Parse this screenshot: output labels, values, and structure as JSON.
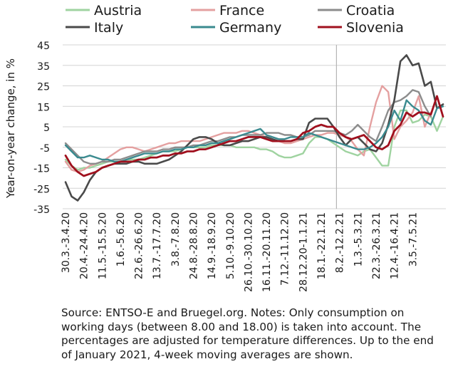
{
  "chart_data": {
    "type": "line",
    "ylabel": "Year-on-year change, in %",
    "ylim": [
      -35,
      45
    ],
    "yticks": [
      -35,
      -25,
      -15,
      -5,
      5,
      15,
      25,
      35,
      45
    ],
    "grid": "horizontal",
    "legend_position": "top",
    "xticks": [
      "30.3.-3.4.20",
      "20.4.-24.4.20",
      "11.5.-15.5.20",
      "1.6.-5.6.20",
      "22.6.-26.6.20",
      "13.7.-17.7.20",
      "3.8.-7.8.20",
      "24.8.-28.8.20",
      "14.9.-18.9.20",
      "5.10.-9.10.20",
      "26.10.-30.10.20",
      "16.11.-20.11.20",
      "7.12.-11.12.20",
      "28.12.20-1.1.21",
      "18.1.-22.1.21",
      "8.2.-12.2.21",
      "1.3.-5.3.21",
      "22.3.-26.3.21",
      "12.4.-16.4.21",
      "3.5.-7.5.21"
    ],
    "annotation": "vertical separator between 1.2.-5.2.21 and 8.2.-12.2.21 (end of 4-week moving averages)",
    "series": [
      {
        "name": "Austria",
        "color": "#9fd3a0",
        "width": 2.4,
        "values": [
          -11,
          -14,
          -16,
          -15,
          -15,
          -14,
          -13,
          -12,
          -12,
          -12,
          -11,
          -11,
          -11,
          -10,
          -9,
          -8,
          -7,
          -7,
          -7,
          -6,
          -5,
          -5,
          -5,
          -5,
          -4,
          -4,
          -4,
          -4,
          -5,
          -5,
          -5,
          -5,
          -6,
          -6,
          -7,
          -9,
          -10,
          -10,
          -9,
          -8,
          -3,
          0,
          0,
          -1,
          -3,
          -5,
          -7,
          -8,
          -9,
          -7,
          -6,
          -10,
          -14,
          -14,
          5,
          13,
          13,
          7,
          8,
          11,
          10,
          3,
          10
        ]
      },
      {
        "name": "France",
        "color": "#e4a0a0",
        "width": 2.4,
        "values": [
          -12,
          -16,
          -17,
          -16,
          -14,
          -13,
          -12,
          -10,
          -8,
          -6,
          -5,
          -5,
          -6,
          -7,
          -6,
          -5,
          -4,
          -3,
          -3,
          -2,
          -2,
          -2,
          -2,
          -1,
          0,
          1,
          2,
          2,
          2,
          3,
          3,
          2,
          1,
          0,
          -1,
          -2,
          -3,
          -3,
          -2,
          -1,
          0,
          1,
          1,
          2,
          2,
          1,
          0,
          -2,
          -6,
          -9,
          5,
          17,
          25,
          22,
          -1,
          5,
          8,
          12,
          20,
          5,
          12
        ]
      },
      {
        "name": "Croatia",
        "color": "#8c8c8c",
        "width": 2.4,
        "values": [
          -3,
          -6,
          -9,
          -12,
          -13,
          -13,
          -12,
          -12,
          -11,
          -11,
          -10,
          -9,
          -8,
          -7,
          -7,
          -7,
          -6,
          -6,
          -5,
          -5,
          -5,
          -4,
          -4,
          -3,
          -2,
          -2,
          -1,
          0,
          0,
          1,
          1,
          1,
          1,
          2,
          2,
          2,
          1,
          1,
          0,
          0,
          1,
          3,
          3,
          3,
          3,
          2,
          1,
          3,
          6,
          3,
          0,
          -2,
          5,
          13,
          17,
          18,
          20,
          23,
          22,
          15,
          10
        ]
      },
      {
        "name": "Italy",
        "color": "#4a4a4a",
        "width": 2.6,
        "values": [
          -22,
          -29,
          -31,
          -27,
          -21,
          -17,
          -15,
          -14,
          -13,
          -13,
          -13,
          -12,
          -12,
          -13,
          -13,
          -13,
          -12,
          -11,
          -9,
          -7,
          -4,
          -1,
          0,
          0,
          -1,
          -3,
          -4,
          -4,
          -3,
          -2,
          -2,
          -1,
          0,
          0,
          -1,
          -2,
          -2,
          -2,
          -1,
          -1,
          7,
          9,
          9,
          9,
          5,
          0,
          -4,
          -1,
          0,
          -3,
          -6,
          -7,
          -3,
          6,
          18,
          37,
          40,
          35,
          36,
          25,
          27,
          14,
          16
        ]
      },
      {
        "name": "Germany",
        "color": "#3a8a8f",
        "width": 2.4,
        "values": [
          -4,
          -7,
          -10,
          -10,
          -9,
          -10,
          -11,
          -11,
          -12,
          -12,
          -11,
          -10,
          -9,
          -8,
          -8,
          -8,
          -7,
          -7,
          -6,
          -6,
          -5,
          -5,
          -4,
          -4,
          -3,
          -3,
          -2,
          -1,
          0,
          1,
          2,
          3,
          4,
          1,
          0,
          -1,
          -1,
          0,
          0,
          0,
          2,
          1,
          0,
          -1,
          -2,
          -3,
          -4,
          -5,
          -6,
          -6,
          -5,
          -3,
          0,
          5,
          13,
          8,
          18,
          15,
          13,
          8,
          6,
          14,
          15
        ]
      },
      {
        "name": "Slovenia",
        "color": "#a0101e",
        "width": 2.8,
        "values": [
          -9,
          -14,
          -17,
          -19,
          -18,
          -17,
          -15,
          -14,
          -13,
          -12,
          -12,
          -12,
          -11,
          -11,
          -10,
          -10,
          -9,
          -9,
          -8,
          -8,
          -7,
          -7,
          -6,
          -6,
          -5,
          -4,
          -3,
          -2,
          -2,
          -1,
          0,
          0,
          0,
          -1,
          -2,
          -2,
          -2,
          -2,
          -1,
          2,
          3,
          5,
          6,
          5,
          5,
          2,
          0,
          -1,
          0,
          1,
          -2,
          -5,
          -6,
          -4,
          3,
          6,
          12,
          10,
          12,
          12,
          11,
          20,
          10
        ]
      }
    ]
  },
  "note": "Source: ENTSO-E and Bruegel.org. Notes: Only consumption on working days (between 8.00 and 18.00) is taken into account. The percentages are adjusted for temperature differences. Up to the end of January 2021, 4-week moving averages are shown."
}
